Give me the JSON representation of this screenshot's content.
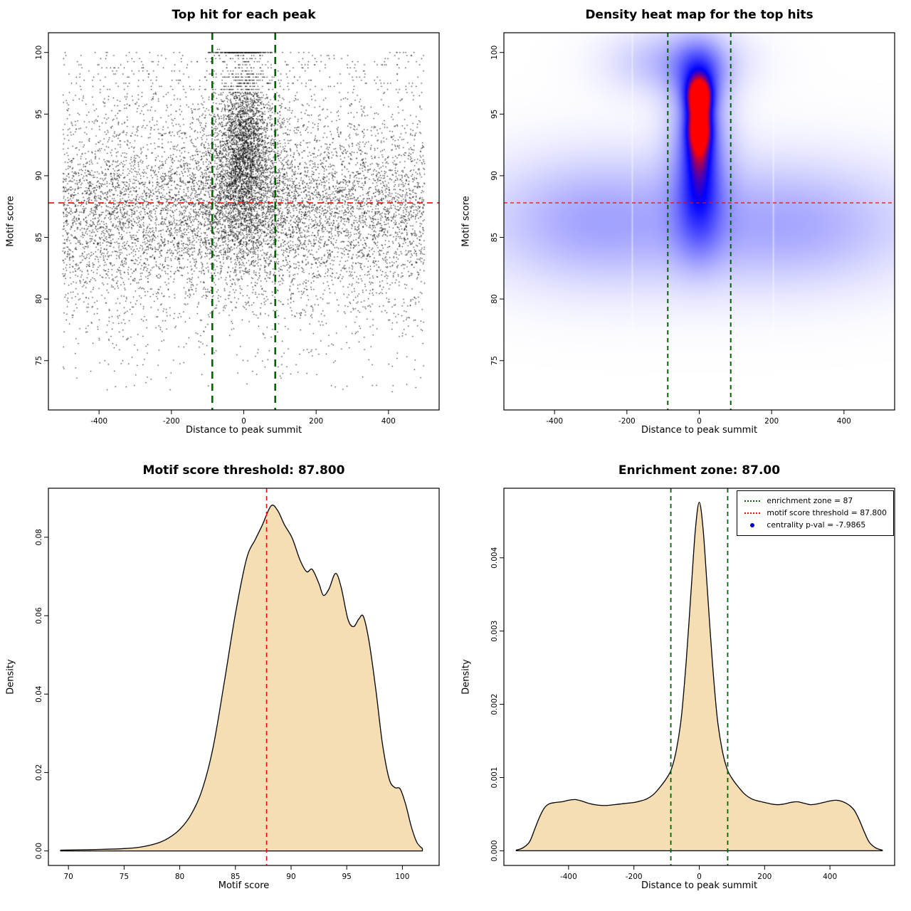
{
  "figure": {
    "background": "#ffffff"
  },
  "chart_data": [
    {
      "id": "top_hits_scatter",
      "type": "scatter",
      "title": "Top hit for each peak",
      "xlabel": "Distance to peak summit",
      "ylabel": "Motif score",
      "xlim": [
        -540,
        540
      ],
      "ylim": [
        71.0,
        101.6
      ],
      "xticks": [
        -400,
        -200,
        0,
        200,
        400
      ],
      "xtick_labels": [
        "-400",
        "-200",
        "0",
        "200",
        "400"
      ],
      "yticks": [
        75,
        80,
        85,
        90,
        95,
        100
      ],
      "ytick_labels": [
        "75",
        "80",
        "85",
        "90",
        "95",
        "100"
      ],
      "point_color": "#000000",
      "lines": [
        {
          "axis": "y",
          "v": 87.8,
          "color": "#ff0000",
          "w": 1.6,
          "dash": "8,6",
          "name": "score-threshold-line"
        },
        {
          "axis": "x",
          "v": -87,
          "color": "#006400",
          "w": 2.6,
          "dash": "10,7",
          "name": "zone-line-left"
        },
        {
          "axis": "x",
          "v": 87,
          "color": "#006400",
          "w": 2.6,
          "dash": "10,7",
          "name": "zone-line-right"
        }
      ],
      "generator": {
        "seed": 7,
        "point_size": 1.25,
        "quantize": {
          "above": 96.7,
          "step": 0.25
        },
        "components": [
          {
            "n": 6200,
            "x": [
              "uniform",
              -500,
              500
            ],
            "y": [
              "normal",
              87.4,
              3.4,
              72.0,
              100.4
            ]
          },
          {
            "n": 1600,
            "x": [
              "uniform",
              -500,
              500
            ],
            "y": [
              "normal",
              84.0,
              4.2,
              71.6,
              100.0
            ]
          },
          {
            "n": 130,
            "x": [
              "uniform",
              -500,
              500
            ],
            "y": [
              "uniform",
              72.5,
              80.0
            ]
          },
          {
            "n": 650,
            "x": [
              "uniform",
              -500,
              500
            ],
            "y": [
              "uniform",
              93.2,
              100.1
            ]
          },
          {
            "n": 2300,
            "x": [
              "normal",
              0,
              60,
              -480,
              480
            ],
            "y": [
              "normal",
              90.3,
              3.9,
              78.5,
              100.2
            ]
          },
          {
            "n": 1350,
            "x": [
              "normal",
              0,
              30,
              -420,
              420
            ],
            "y": [
              "normal",
              93.2,
              3.4,
              81.0,
              100.2
            ]
          },
          {
            "n": 240,
            "x": [
              "normal",
              0,
              40,
              -360,
              360
            ],
            "y": [
              "const",
              100
            ]
          }
        ]
      }
    },
    {
      "id": "density_heatmap",
      "type": "heatmap",
      "title": "Density heat map for the top hits",
      "xlabel": "Distance to peak summit",
      "ylabel": "Motif score",
      "xlim": [
        -540,
        540
      ],
      "ylim": [
        71.0,
        101.6
      ],
      "xticks": [
        -400,
        -200,
        0,
        200,
        400
      ],
      "xtick_labels": [
        "-400",
        "-200",
        "0",
        "200",
        "400"
      ],
      "yticks": [
        75,
        80,
        85,
        90,
        95,
        100
      ],
      "ytick_labels": [
        "75",
        "80",
        "85",
        "90",
        "95",
        "100"
      ],
      "colormap": [
        "#ffffff",
        "#0000ff",
        "#ff0000"
      ],
      "knee": 0.68,
      "white_columns": [
        -185,
        205
      ],
      "blobs": [
        {
          "x": 0,
          "y": 86.2,
          "sx": 430,
          "sy": 3.8,
          "a": 0.2
        },
        {
          "x": -320,
          "y": 86.5,
          "sx": 150,
          "sy": 3.4,
          "a": 0.09
        },
        {
          "x": 300,
          "y": 85.8,
          "sx": 160,
          "sy": 3.0,
          "a": 0.07
        },
        {
          "x": -60,
          "y": 99.2,
          "sx": 125,
          "sy": 1.9,
          "a": 0.2
        },
        {
          "x": 0,
          "y": 93.0,
          "sx": 58,
          "sy": 4.5,
          "a": 0.32
        },
        {
          "x": 0,
          "y": 96.4,
          "sx": 24,
          "sy": 1.05,
          "a": 0.95
        },
        {
          "x": 0,
          "y": 93.9,
          "sx": 24,
          "sy": 1.25,
          "a": 0.9
        },
        {
          "x": 0,
          "y": 91.6,
          "sx": 28,
          "sy": 1.4,
          "a": 0.35
        },
        {
          "x": 0,
          "y": 89.0,
          "sx": 34,
          "sy": 1.7,
          "a": 0.22
        },
        {
          "x": 0,
          "y": 86.0,
          "sx": 46,
          "sy": 2.3,
          "a": 0.18
        },
        {
          "x": 0,
          "y": 98.4,
          "sx": 42,
          "sy": 1.5,
          "a": 0.28
        }
      ],
      "lines": [
        {
          "axis": "y",
          "v": 87.8,
          "color": "#ff0000",
          "w": 1.3,
          "dash": "5,4",
          "name": "score-threshold-line"
        },
        {
          "axis": "x",
          "v": -87,
          "color": "#006400",
          "w": 2.0,
          "dash": "6,5",
          "name": "zone-line-left"
        },
        {
          "axis": "x",
          "v": 87,
          "color": "#006400",
          "w": 2.0,
          "dash": "6,5",
          "name": "zone-line-right"
        }
      ]
    },
    {
      "id": "motif_score_density",
      "type": "area",
      "title": "Motif score threshold: 87.800",
      "xlabel": "Motif score",
      "ylabel": "Density",
      "xlim": [
        68.2,
        103.3
      ],
      "ylim": [
        -0.0037,
        0.0925
      ],
      "xticks": [
        70,
        75,
        80,
        85,
        90,
        95,
        100
      ],
      "xtick_labels": [
        "70",
        "75",
        "80",
        "85",
        "90",
        "95",
        "100"
      ],
      "yticks": [
        0,
        0.02,
        0.04,
        0.06,
        0.08
      ],
      "ytick_labels": [
        "0.00",
        "0.02",
        "0.04",
        "0.06",
        "0.08"
      ],
      "fill": "#f5deb3",
      "lines": [
        {
          "axis": "x",
          "v": 87.8,
          "color": "#ff0000",
          "w": 1.6,
          "dash": "6,5",
          "name": "score-threshold-line"
        }
      ],
      "curve": [
        [
          69.3,
          0.0002
        ],
        [
          71,
          0.0003
        ],
        [
          73,
          0.0004
        ],
        [
          75,
          0.0006
        ],
        [
          76.5,
          0.001
        ],
        [
          78,
          0.002
        ],
        [
          79,
          0.0033
        ],
        [
          80,
          0.0055
        ],
        [
          81,
          0.0092
        ],
        [
          82,
          0.0155
        ],
        [
          83,
          0.0265
        ],
        [
          84,
          0.043
        ],
        [
          85,
          0.0605
        ],
        [
          86,
          0.0745
        ],
        [
          86.8,
          0.0795
        ],
        [
          87.4,
          0.083
        ],
        [
          88.2,
          0.088
        ],
        [
          88.8,
          0.0868
        ],
        [
          89.4,
          0.0832
        ],
        [
          90.1,
          0.0798
        ],
        [
          90.8,
          0.0742
        ],
        [
          91.4,
          0.0712
        ],
        [
          91.9,
          0.0718
        ],
        [
          92.5,
          0.0682
        ],
        [
          92.9,
          0.0652
        ],
        [
          93.4,
          0.0668
        ],
        [
          94.0,
          0.0708
        ],
        [
          94.5,
          0.0672
        ],
        [
          95.1,
          0.0592
        ],
        [
          95.6,
          0.0572
        ],
        [
          96.1,
          0.0592
        ],
        [
          96.5,
          0.0598
        ],
        [
          97.0,
          0.0535
        ],
        [
          97.6,
          0.0415
        ],
        [
          98.2,
          0.0275
        ],
        [
          98.8,
          0.0185
        ],
        [
          99.3,
          0.0162
        ],
        [
          99.8,
          0.0158
        ],
        [
          100.3,
          0.0118
        ],
        [
          100.8,
          0.0062
        ],
        [
          101.3,
          0.0022
        ],
        [
          101.8,
          0.0006
        ]
      ]
    },
    {
      "id": "distance_density",
      "type": "area",
      "title": "Enrichment zone: 87.00",
      "xlabel": "Distance to peak summit",
      "ylabel": "Density",
      "xlim": [
        -598,
        598
      ],
      "ylim": [
        -0.0002,
        0.00495
      ],
      "xticks": [
        -400,
        -200,
        0,
        200,
        400
      ],
      "xtick_labels": [
        "-400",
        "-200",
        "0",
        "200",
        "400"
      ],
      "yticks": [
        0,
        0.001,
        0.002,
        0.003,
        0.004
      ],
      "ytick_labels": [
        "0.000",
        "0.001",
        "0.002",
        "0.003",
        "0.004"
      ],
      "fill": "#f5deb3",
      "lines": [
        {
          "axis": "x",
          "v": -87,
          "color": "#006400",
          "w": 1.8,
          "dash": "6,5",
          "name": "zone-line-left"
        },
        {
          "axis": "x",
          "v": 87,
          "color": "#006400",
          "w": 1.8,
          "dash": "6,5",
          "name": "zone-line-right"
        }
      ],
      "legend": {
        "items": [
          {
            "label": "enrichment zone = 87",
            "type": "line",
            "color": "#006400",
            "style": "dotted"
          },
          {
            "label": "motif score threshold = 87.800",
            "type": "line",
            "color": "#ff0000",
            "style": "dotted"
          },
          {
            "label": "centrality p-val = -7.9865",
            "type": "point",
            "color": "#0000cd"
          }
        ]
      },
      "curve": [
        [
          -560,
          1e-05
        ],
        [
          -540,
          4e-05
        ],
        [
          -520,
          0.00012
        ],
        [
          -505,
          0.00028
        ],
        [
          -490,
          0.00045
        ],
        [
          -475,
          0.00058
        ],
        [
          -460,
          0.00064
        ],
        [
          -440,
          0.00066
        ],
        [
          -420,
          0.00067
        ],
        [
          -400,
          0.00069
        ],
        [
          -380,
          0.0007
        ],
        [
          -360,
          0.00068
        ],
        [
          -340,
          0.00065
        ],
        [
          -320,
          0.00063
        ],
        [
          -300,
          0.00062
        ],
        [
          -280,
          0.00062
        ],
        [
          -260,
          0.00063
        ],
        [
          -240,
          0.00064
        ],
        [
          -220,
          0.00065
        ],
        [
          -200,
          0.00066
        ],
        [
          -180,
          0.00068
        ],
        [
          -160,
          0.00071
        ],
        [
          -140,
          0.00077
        ],
        [
          -120,
          0.00087
        ],
        [
          -100,
          0.00099
        ],
        [
          -85,
          0.00112
        ],
        [
          -70,
          0.00138
        ],
        [
          -55,
          0.00182
        ],
        [
          -40,
          0.00258
        ],
        [
          -25,
          0.00355
        ],
        [
          -12,
          0.00438
        ],
        [
          0,
          0.00476
        ],
        [
          12,
          0.00438
        ],
        [
          25,
          0.00355
        ],
        [
          40,
          0.00258
        ],
        [
          55,
          0.00182
        ],
        [
          70,
          0.00138
        ],
        [
          85,
          0.00112
        ],
        [
          100,
          0.00099
        ],
        [
          120,
          0.00087
        ],
        [
          140,
          0.00077
        ],
        [
          160,
          0.00071
        ],
        [
          180,
          0.00068
        ],
        [
          200,
          0.00066
        ],
        [
          220,
          0.00064
        ],
        [
          240,
          0.00063
        ],
        [
          260,
          0.00064
        ],
        [
          280,
          0.00066
        ],
        [
          300,
          0.00067
        ],
        [
          320,
          0.00065
        ],
        [
          340,
          0.00063
        ],
        [
          360,
          0.00064
        ],
        [
          380,
          0.00066
        ],
        [
          400,
          0.00068
        ],
        [
          420,
          0.00069
        ],
        [
          440,
          0.00067
        ],
        [
          460,
          0.00062
        ],
        [
          475,
          0.00055
        ],
        [
          490,
          0.00042
        ],
        [
          505,
          0.00026
        ],
        [
          520,
          0.00012
        ],
        [
          540,
          4e-05
        ],
        [
          560,
          1e-05
        ]
      ]
    }
  ]
}
